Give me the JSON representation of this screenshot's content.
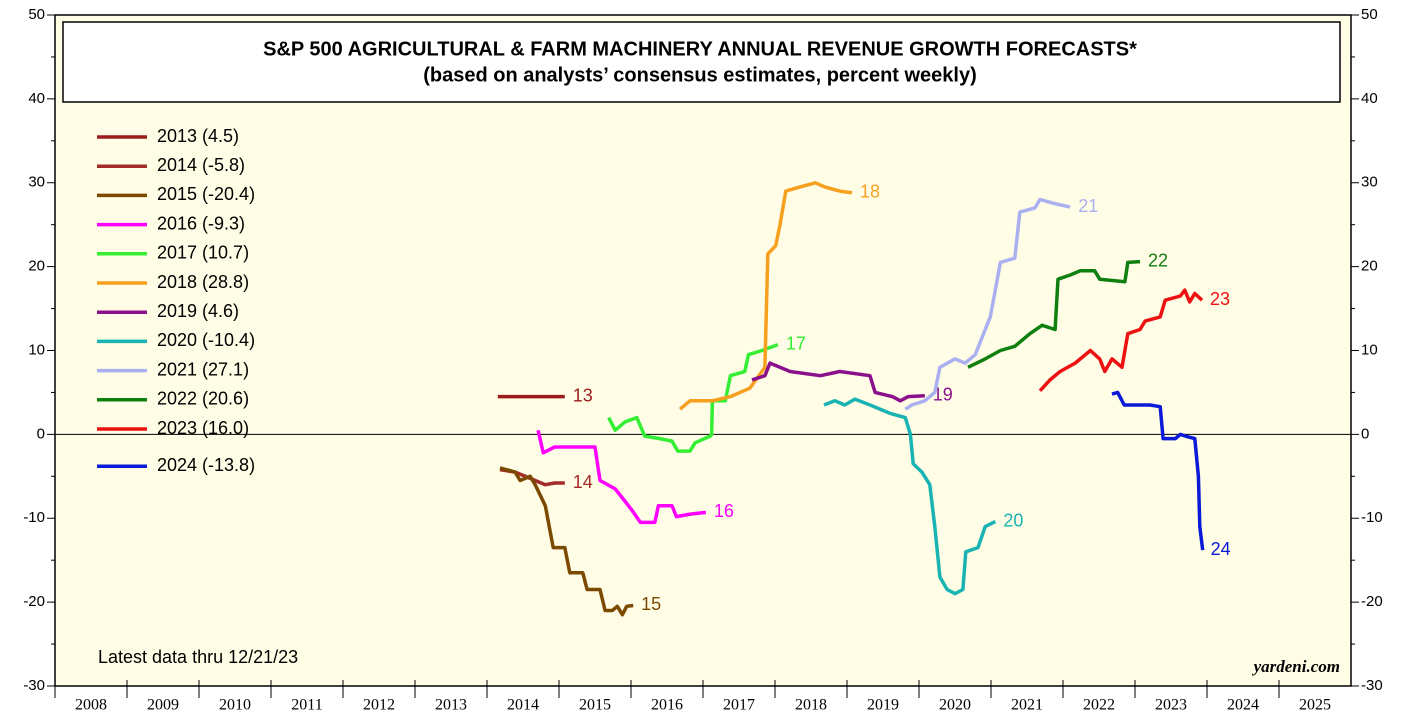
{
  "chart_data": {
    "type": "line",
    "title": "S&P 500 AGRICULTURAL & FARM MACHINERY ANNUAL REVENUE GROWTH FORECASTS*",
    "subtitle": "(based on analysts’ consensus estimates, percent weekly)",
    "annotations": [
      "Latest data thru 12/21/23",
      "yardeni.com"
    ],
    "xlim": [
      2008,
      2026
    ],
    "xticks": [
      2008,
      2009,
      2010,
      2011,
      2012,
      2013,
      2014,
      2015,
      2016,
      2017,
      2018,
      2019,
      2020,
      2021,
      2022,
      2023,
      2024,
      2025
    ],
    "ylim": [
      -30,
      50
    ],
    "yticks": [
      -30,
      -20,
      -10,
      0,
      10,
      20,
      30,
      40,
      50
    ],
    "yminorticks": [
      -25,
      -15,
      -5,
      5,
      15,
      25,
      35,
      45
    ],
    "hline": 0,
    "series": [
      {
        "name": "2013 (4.5)",
        "label": "13",
        "color": "#9b1c1c",
        "x": [
          2014.15,
          2015.08
        ],
        "values": [
          4.5,
          4.5
        ]
      },
      {
        "name": "2014 (-5.8)",
        "label": "14",
        "color": "#a52a2a",
        "x": [
          2014.18,
          2014.39,
          2014.53,
          2014.67,
          2014.81,
          2014.94,
          2015.08
        ],
        "values": [
          -4.2,
          -4.5,
          -5,
          -5.5,
          -6,
          -5.8,
          -5.8
        ]
      },
      {
        "name": "2015 (-20.4)",
        "label": "15",
        "color": "#7b4a00",
        "x": [
          2014.18,
          2014.39,
          2014.46,
          2014.6,
          2014.67,
          2014.81,
          2014.92,
          2015.08,
          2015.15,
          2015.33,
          2015.39,
          2015.57,
          2015.64,
          2015.74,
          2015.81,
          2015.88,
          2015.94,
          2016.03
        ],
        "values": [
          -4,
          -4.5,
          -5.5,
          -5,
          -6,
          -8.5,
          -13.5,
          -13.5,
          -16.5,
          -16.5,
          -18.5,
          -18.5,
          -21,
          -21,
          -20.5,
          -21.5,
          -20.5,
          -20.4
        ]
      },
      {
        "name": "2016 (-9.3)",
        "label": "16",
        "color": "#ff00ff",
        "x": [
          2014.71,
          2014.78,
          2014.94,
          2015.5,
          2015.57,
          2015.78,
          2015.92,
          2016.01,
          2016.13,
          2016.33,
          2016.38,
          2016.57,
          2016.63,
          2016.82,
          2017.04
        ],
        "values": [
          0.5,
          -2.2,
          -1.5,
          -1.5,
          -5.5,
          -6.5,
          -8,
          -9,
          -10.5,
          -10.5,
          -8.5,
          -8.5,
          -9.8,
          -9.5,
          -9.3
        ]
      },
      {
        "name": "2017 (10.7)",
        "label": "17",
        "color": "#33ee33",
        "x": [
          2015.69,
          2015.78,
          2015.92,
          2016.08,
          2016.19,
          2016.4,
          2016.57,
          2016.65,
          2016.82,
          2016.89,
          2017.1,
          2017.12,
          2017.13,
          2017.31,
          2017.38,
          2017.58,
          2017.63,
          2017.82,
          2018.04
        ],
        "values": [
          2,
          0.5,
          1.5,
          2,
          -0.2,
          -0.5,
          -0.8,
          -2,
          -2,
          -1,
          -0.2,
          0,
          4,
          4,
          7,
          7.5,
          9.5,
          10,
          10.7
        ]
      },
      {
        "name": "2018 (28.8)",
        "label": "18",
        "color": "#f7a01f",
        "x": [
          2016.68,
          2016.82,
          2016.96,
          2017.13,
          2017.38,
          2017.65,
          2017.86,
          2017.9,
          2018.01,
          2018.07,
          2018.15,
          2018.35,
          2018.56,
          2018.69,
          2018.9,
          2019.07
        ],
        "values": [
          3,
          4,
          4,
          4,
          4.5,
          5.5,
          8,
          21.5,
          22.5,
          25,
          29,
          29.5,
          30,
          29.5,
          29,
          28.8
        ]
      },
      {
        "name": "2019 (4.6)",
        "label": "19",
        "color": "#8b108b",
        "x": [
          2017.68,
          2017.86,
          2017.93,
          2018.21,
          2018.63,
          2018.9,
          2019.32,
          2019.39,
          2019.63,
          2019.74,
          2019.85,
          2020.08
        ],
        "values": [
          6.5,
          7,
          8.5,
          7.5,
          7,
          7.5,
          7,
          5,
          4.5,
          4,
          4.5,
          4.6
        ]
      },
      {
        "name": "2020 (-10.4)",
        "label": "20",
        "color": "#19b3b3",
        "x": [
          2018.68,
          2018.83,
          2018.97,
          2019.11,
          2019.32,
          2019.6,
          2019.81,
          2019.88,
          2019.92,
          2020.04,
          2020.15,
          2020.22,
          2020.29,
          2020.39,
          2020.5,
          2020.61,
          2020.65,
          2020.82,
          2020.92,
          2021.06
        ],
        "values": [
          3.5,
          4,
          3.5,
          4.2,
          3.5,
          2.5,
          2,
          0,
          -3.5,
          -4.5,
          -6,
          -11,
          -17,
          -18.5,
          -19,
          -18.5,
          -14,
          -13.5,
          -11,
          -10.4
        ]
      },
      {
        "name": "2021 (27.1)",
        "label": "21",
        "color": "#aab0f0",
        "x": [
          2019.81,
          2019.9,
          2020.08,
          2020.22,
          2020.29,
          2020.5,
          2020.64,
          2020.78,
          2020.99,
          2021.13,
          2021.33,
          2021.4,
          2021.61,
          2021.68,
          2021.89,
          2022.1
        ],
        "values": [
          3,
          3.5,
          4,
          5,
          8,
          9,
          8.5,
          9.5,
          14,
          20.5,
          21,
          26.5,
          27,
          28,
          27.5,
          27.1
        ]
      },
      {
        "name": "2022 (20.6)",
        "label": "22",
        "color": "#0f7f0f",
        "x": [
          2020.68,
          2020.92,
          2021.13,
          2021.33,
          2021.54,
          2021.71,
          2021.89,
          2021.93,
          2022.1,
          2022.24,
          2022.44,
          2022.51,
          2022.86,
          2022.9,
          2023.07
        ],
        "values": [
          8,
          9,
          10,
          10.5,
          12,
          13,
          12.5,
          18.5,
          19,
          19.5,
          19.5,
          18.5,
          18.2,
          20.5,
          20.6
        ]
      },
      {
        "name": "2023 (16.0)",
        "label": "23",
        "color": "#ee1111",
        "x": [
          2021.68,
          2021.82,
          2021.96,
          2022.17,
          2022.38,
          2022.51,
          2022.58,
          2022.68,
          2022.82,
          2022.9,
          2023.07,
          2023.14,
          2023.35,
          2023.42,
          2023.63,
          2023.69,
          2023.76,
          2023.83,
          2023.93
        ],
        "values": [
          5.2,
          6.5,
          7.5,
          8.5,
          10,
          9,
          7.5,
          9,
          8,
          12,
          12.5,
          13.5,
          14,
          16,
          16.5,
          17.2,
          15.8,
          16.8,
          16
        ]
      },
      {
        "name": "2024 (-13.8)",
        "label": "24",
        "color": "#0a1ad6",
        "x": [
          2022.68,
          2022.76,
          2022.85,
          2022.93,
          2023.21,
          2023.35,
          2023.39,
          2023.56,
          2023.63,
          2023.74,
          2023.83,
          2023.88,
          2023.9,
          2023.94
        ],
        "values": [
          4.8,
          5,
          3.5,
          3.5,
          3.5,
          3.3,
          -0.5,
          -0.5,
          0,
          -0.3,
          -0.5,
          -5,
          -11,
          -13.8
        ]
      }
    ]
  }
}
